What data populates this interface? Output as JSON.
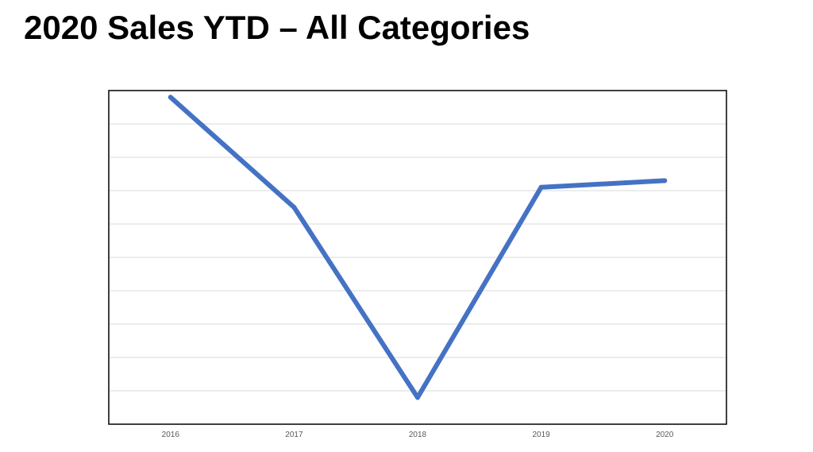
{
  "slide": {
    "title": "2020 Sales YTD – All Categories"
  },
  "chart_data": {
    "type": "line",
    "title": "",
    "xlabel": "",
    "ylabel": "",
    "categories": [
      "2016",
      "2017",
      "2018",
      "2019",
      "2020"
    ],
    "values": [
      9.8,
      6.5,
      0.8,
      7.1,
      7.3
    ],
    "ylim": [
      0,
      10
    ],
    "grid": true,
    "legend": "none",
    "y_tick_labels_shown": false,
    "colors": {
      "line": "#4472C4",
      "grid": "#D9D9D9",
      "frame": "#000000"
    }
  }
}
